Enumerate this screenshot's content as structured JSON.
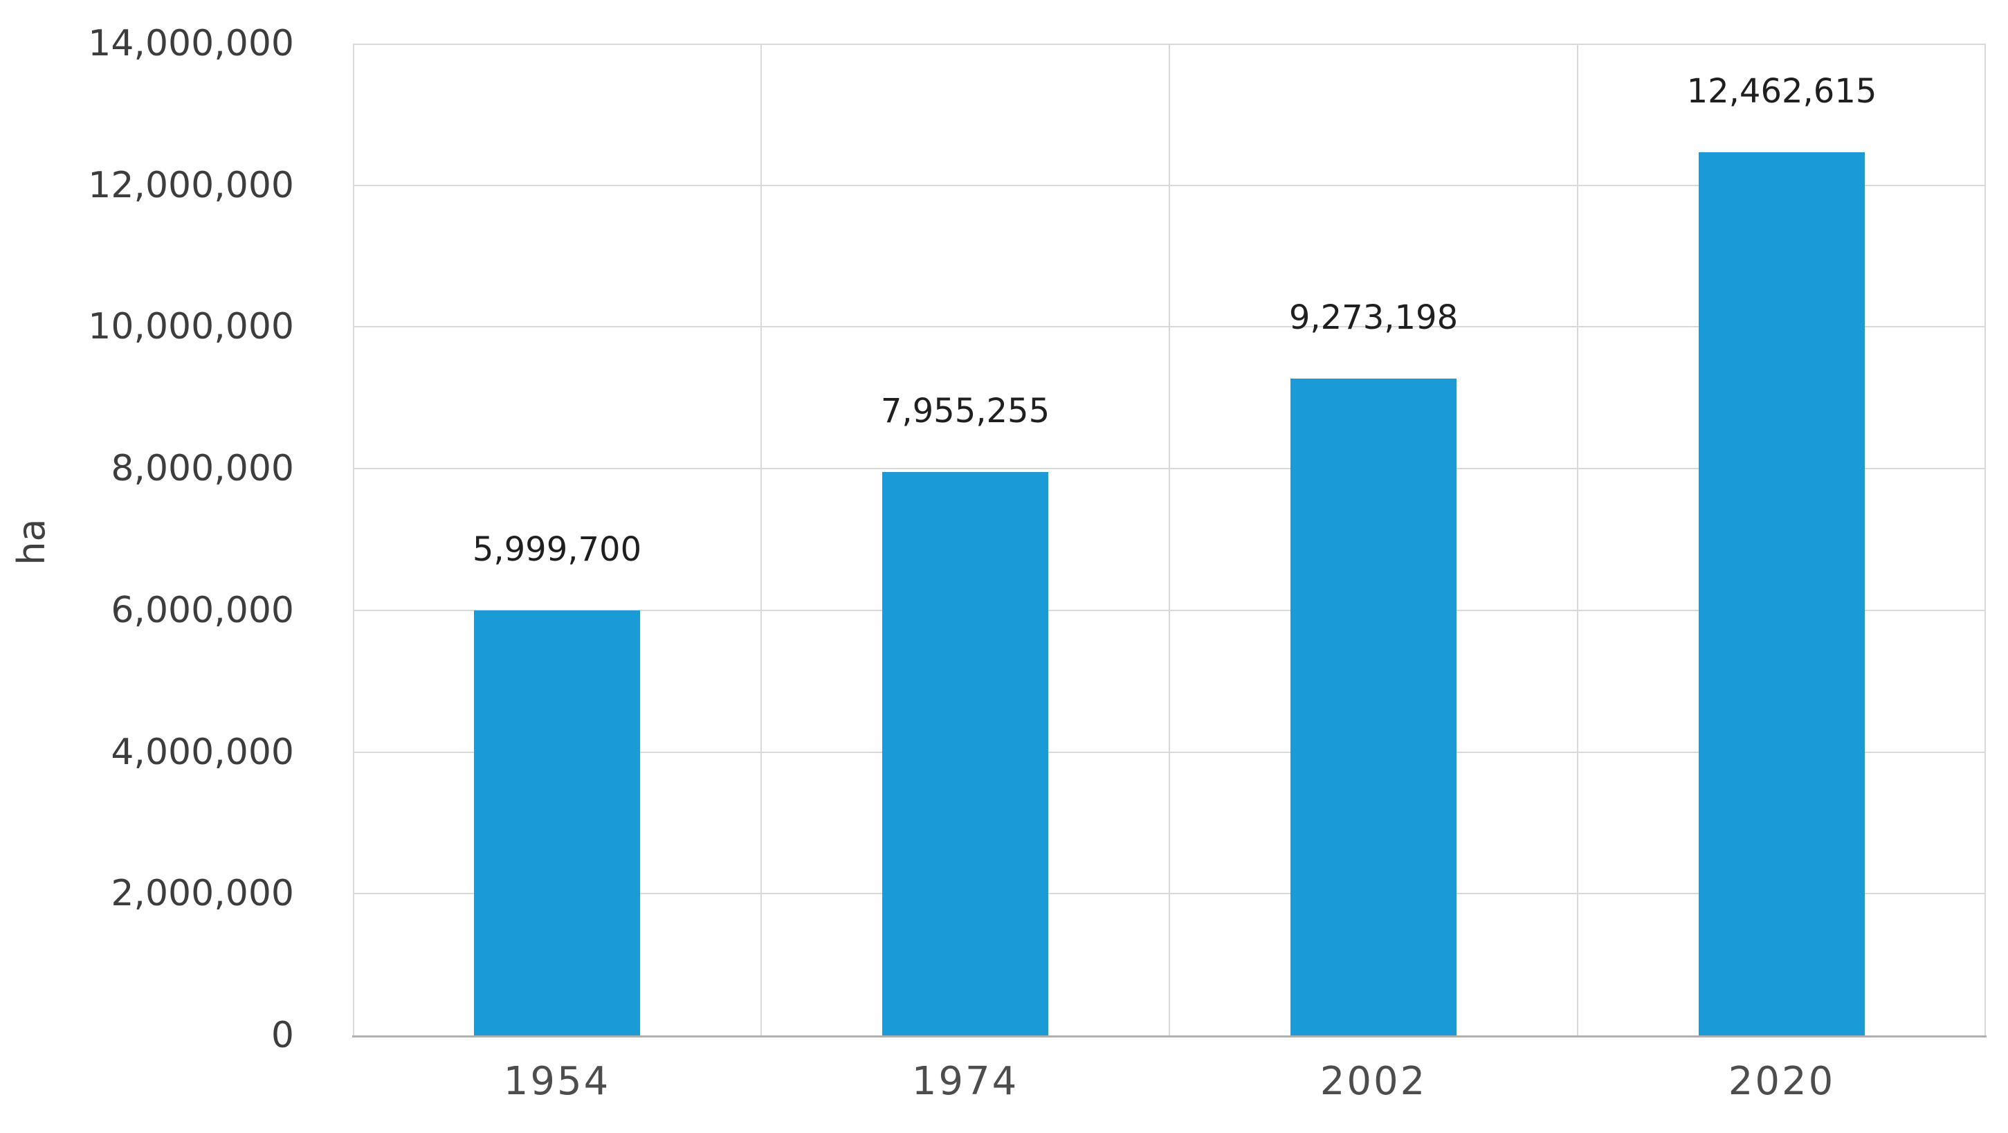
{
  "chart_data": {
    "type": "bar",
    "title": "",
    "xlabel": "",
    "ylabel": "ha",
    "categories": [
      "1954",
      "1974",
      "2002",
      "2020"
    ],
    "values": [
      5999700,
      7955255,
      9273198,
      12462615
    ],
    "value_labels": [
      "5,999,700",
      "7,955,255",
      "9,273,198",
      "12,462,615"
    ],
    "series_name": "",
    "ylim": [
      0,
      14000000
    ],
    "ytick_step": 2000000,
    "ytick_labels": [
      "0",
      "2,000,000",
      "4,000,000",
      "6,000,000",
      "8,000,000",
      "10,000,000",
      "12,000,000",
      "14,000,000"
    ],
    "grid": true,
    "legend_position": "none",
    "bar_color": "#1A9AD7",
    "grid_color": "#D9D9D9",
    "axis_line_color": "#B1B1B1"
  }
}
